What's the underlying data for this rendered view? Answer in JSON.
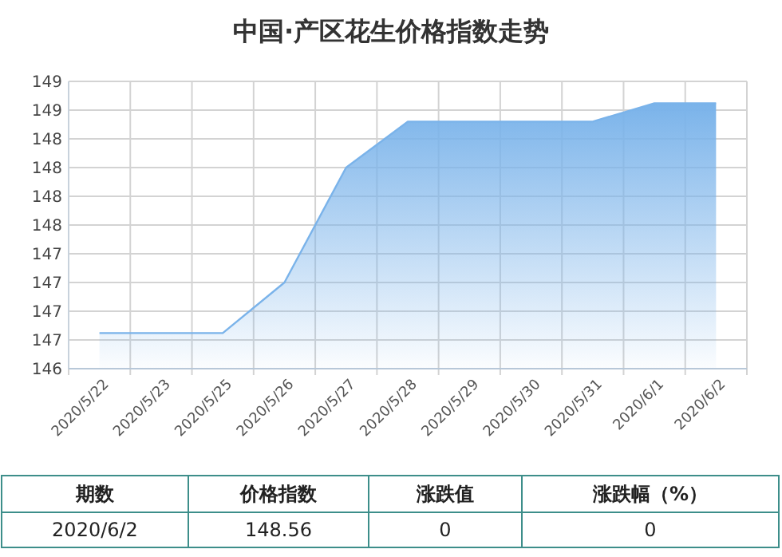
{
  "chart_data": [
    {
      "type": "area",
      "title": "中国·产区花生价格指数走势",
      "categories": [
        "2020/5/22",
        "2020/5/23",
        "2020/5/25",
        "2020/5/26",
        "2020/5/27",
        "2020/5/28",
        "2020/5/29",
        "2020/5/30",
        "2020/5/31",
        "2020/6/1",
        "2020/6/2"
      ],
      "series": [
        {
          "color": "#7ab3ea",
          "values": [
            146.56,
            146.56,
            146.56,
            147.0,
            148.0,
            148.4,
            148.4,
            148.4,
            148.4,
            148.56,
            148.56
          ]
        }
      ],
      "ylim": [
        146.25,
        148.75
      ],
      "yticks": [
        {
          "value": 146.25,
          "label": "146"
        },
        {
          "value": 146.5,
          "label": "147"
        },
        {
          "value": 146.75,
          "label": "147"
        },
        {
          "value": 147,
          "label": "147"
        },
        {
          "value": 147.25,
          "label": "147"
        },
        {
          "value": 147.5,
          "label": "148"
        },
        {
          "value": 147.75,
          "label": "148"
        },
        {
          "value": 148,
          "label": "148"
        },
        {
          "value": 148.25,
          "label": "148"
        },
        {
          "value": 148.5,
          "label": "149"
        },
        {
          "value": 148.75,
          "label": "149"
        }
      ],
      "grid": true
    },
    {
      "type": "other",
      "categories": [
        "期数",
        "价格指数",
        "涨跌值",
        "涨跌幅（%）"
      ],
      "annotations": [
        "2020/6/2",
        "148.56",
        "0",
        "0"
      ]
    }
  ]
}
